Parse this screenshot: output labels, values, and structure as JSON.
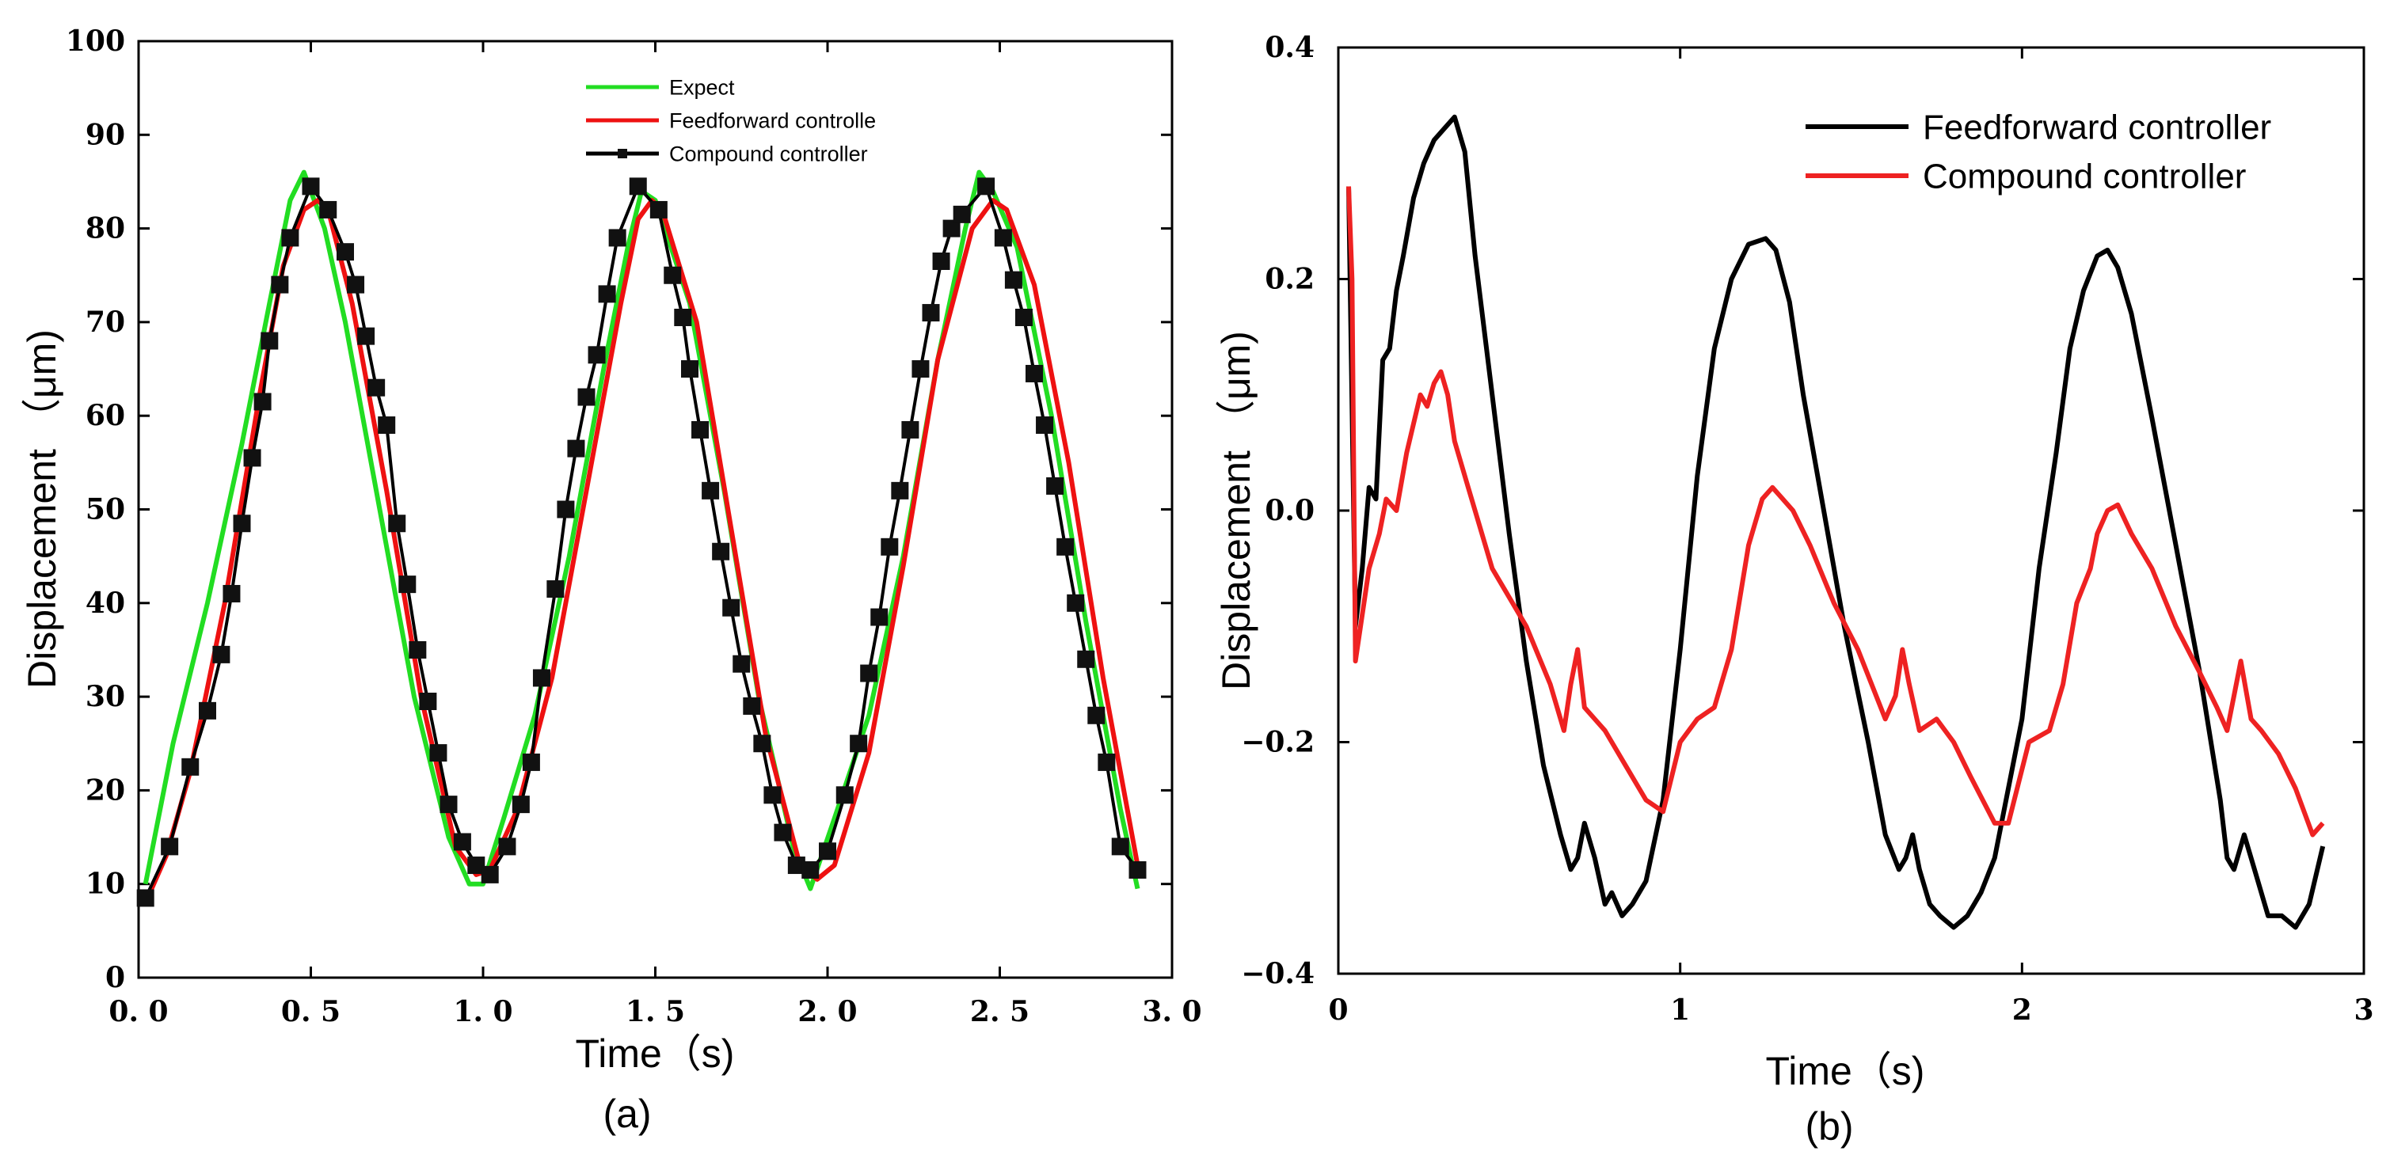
{
  "chart_data": [
    {
      "type": "line",
      "panel_label": "(a)",
      "xlabel": "Time（s)",
      "ylabel": "Displacement （μm)",
      "xlim": [
        0,
        3
      ],
      "ylim": [
        0,
        100
      ],
      "x_ticks": [
        0,
        0.5,
        1,
        1.5,
        2,
        2.5,
        3
      ],
      "x_tick_labels": [
        "0. 0",
        "0. 5",
        "1. 0",
        "1. 5",
        "2. 0",
        "2. 5",
        "3. 0"
      ],
      "y_ticks": [
        0,
        10,
        20,
        30,
        40,
        50,
        60,
        70,
        80,
        90,
        100
      ],
      "y_tick_labels": [
        "0",
        "10",
        "20",
        "30",
        "40",
        "50",
        "60",
        "70",
        "80",
        "90",
        "100"
      ],
      "legend_position": "top-center",
      "series": [
        {
          "name": "Expect",
          "color": "#22dd22",
          "x": [
            0.02,
            0.1,
            0.2,
            0.3,
            0.38,
            0.44,
            0.48,
            0.5,
            0.54,
            0.6,
            0.7,
            0.8,
            0.9,
            0.96,
            1.0,
            1.06,
            1.15,
            1.25,
            1.35,
            1.42,
            1.46,
            1.5,
            1.6,
            1.7,
            1.8,
            1.9,
            1.95,
            2.02,
            2.12,
            2.22,
            2.32,
            2.4,
            2.44,
            2.48,
            2.55,
            2.65,
            2.75,
            2.85,
            2.9
          ],
          "values": [
            10,
            25,
            40,
            57,
            72,
            83,
            86,
            84,
            80,
            70,
            50,
            30,
            15,
            10,
            10,
            17,
            28,
            45,
            65,
            78,
            84,
            83,
            72,
            52,
            30,
            14,
            9.5,
            17,
            28,
            45,
            66,
            80,
            86,
            84,
            78,
            60,
            38,
            18,
            9.5
          ]
        },
        {
          "name": "Feedforward controlle",
          "color": "#ee1111",
          "x": [
            0.02,
            0.08,
            0.15,
            0.25,
            0.35,
            0.42,
            0.48,
            0.52,
            0.55,
            0.62,
            0.72,
            0.82,
            0.92,
            0.98,
            1.02,
            1.1,
            1.2,
            1.3,
            1.4,
            1.45,
            1.49,
            1.52,
            1.62,
            1.72,
            1.82,
            1.92,
            1.97,
            2.02,
            2.12,
            2.22,
            2.32,
            2.42,
            2.48,
            2.52,
            2.6,
            2.7,
            2.8,
            2.9
          ],
          "values": [
            8,
            13,
            22,
            40,
            62,
            76,
            82,
            83,
            82,
            72,
            52,
            30,
            14,
            11,
            11.5,
            18,
            32,
            52,
            72,
            81,
            83,
            82,
            70,
            48,
            26,
            12,
            10.5,
            12,
            24,
            44,
            66,
            80,
            83,
            82,
            74,
            55,
            32,
            12
          ]
        },
        {
          "name": "Compound controller",
          "color": "#000000",
          "marker": "square",
          "x": [
            0.02,
            0.09,
            0.15,
            0.2,
            0.24,
            0.27,
            0.3,
            0.33,
            0.36,
            0.38,
            0.41,
            0.44,
            0.5,
            0.55,
            0.6,
            0.63,
            0.66,
            0.69,
            0.72,
            0.75,
            0.78,
            0.81,
            0.84,
            0.87,
            0.9,
            0.94,
            0.98,
            1.02,
            1.07,
            1.11,
            1.14,
            1.17,
            1.21,
            1.24,
            1.27,
            1.3,
            1.33,
            1.36,
            1.39,
            1.45,
            1.51,
            1.55,
            1.58,
            1.6,
            1.63,
            1.66,
            1.69,
            1.72,
            1.75,
            1.78,
            1.81,
            1.84,
            1.87,
            1.91,
            1.95,
            2.0,
            2.05,
            2.09,
            2.12,
            2.15,
            2.18,
            2.21,
            2.24,
            2.27,
            2.3,
            2.33,
            2.36,
            2.39,
            2.46,
            2.51,
            2.54,
            2.57,
            2.6,
            2.63,
            2.66,
            2.69,
            2.72,
            2.75,
            2.78,
            2.81,
            2.85,
            2.9
          ],
          "values": [
            8.5,
            14,
            22.5,
            28.5,
            34.5,
            41,
            48.5,
            55.5,
            61.5,
            68,
            74,
            79,
            84.5,
            82,
            77.5,
            74,
            68.5,
            63,
            59,
            48.5,
            42,
            35,
            29.5,
            24,
            18.5,
            14.5,
            12,
            11,
            14,
            18.5,
            23,
            32,
            41.5,
            50,
            56.5,
            62,
            66.5,
            73,
            79,
            84.5,
            82,
            75,
            70.5,
            65,
            58.5,
            52,
            45.5,
            39.5,
            33.5,
            29,
            25,
            19.5,
            15.5,
            12,
            11.5,
            13.5,
            19.5,
            25,
            32.5,
            38.5,
            46,
            52,
            58.5,
            65,
            71,
            76.5,
            80,
            81.5,
            84.5,
            79,
            74.5,
            70.5,
            64.5,
            59,
            52.5,
            46,
            40,
            34,
            28,
            23,
            14,
            11.5
          ]
        }
      ]
    },
    {
      "type": "line",
      "panel_label": "(b)",
      "xlabel": "Time（s)",
      "ylabel": "Displacement （μm)",
      "xlim": [
        0,
        3
      ],
      "ylim": [
        -0.4,
        0.4
      ],
      "x_ticks": [
        0,
        1,
        2,
        3
      ],
      "x_tick_labels": [
        "0",
        "1",
        "2",
        "3"
      ],
      "y_ticks": [
        -0.4,
        -0.2,
        0.0,
        0.2,
        0.4
      ],
      "y_tick_labels": [
        "−0.4",
        "−0.2",
        "0.0",
        "0.2",
        "0.4"
      ],
      "legend_position": "top-right",
      "series": [
        {
          "name": "Feedforward controller",
          "color": "#000000",
          "x": [
            0.03,
            0.05,
            0.07,
            0.09,
            0.11,
            0.13,
            0.15,
            0.17,
            0.19,
            0.22,
            0.25,
            0.28,
            0.31,
            0.34,
            0.37,
            0.4,
            0.45,
            0.5,
            0.55,
            0.6,
            0.65,
            0.68,
            0.7,
            0.72,
            0.75,
            0.78,
            0.8,
            0.83,
            0.86,
            0.9,
            0.95,
            1.0,
            1.05,
            1.1,
            1.15,
            1.2,
            1.25,
            1.28,
            1.32,
            1.36,
            1.42,
            1.48,
            1.55,
            1.6,
            1.64,
            1.66,
            1.68,
            1.7,
            1.73,
            1.76,
            1.8,
            1.84,
            1.88,
            1.92,
            2.0,
            2.05,
            2.1,
            2.14,
            2.18,
            2.22,
            2.25,
            2.28,
            2.32,
            2.38,
            2.45,
            2.52,
            2.58,
            2.6,
            2.62,
            2.65,
            2.68,
            2.72,
            2.76,
            2.8,
            2.84,
            2.88
          ],
          "values": [
            0.28,
            -0.1,
            -0.05,
            0.02,
            0.01,
            0.13,
            0.14,
            0.19,
            0.22,
            0.27,
            0.3,
            0.32,
            0.33,
            0.34,
            0.31,
            0.22,
            0.1,
            -0.02,
            -0.13,
            -0.22,
            -0.28,
            -0.31,
            -0.3,
            -0.27,
            -0.3,
            -0.34,
            -0.33,
            -0.35,
            -0.34,
            -0.32,
            -0.25,
            -0.12,
            0.03,
            0.14,
            0.2,
            0.23,
            0.235,
            0.225,
            0.18,
            0.1,
            0.0,
            -0.1,
            -0.2,
            -0.28,
            -0.31,
            -0.3,
            -0.28,
            -0.31,
            -0.34,
            -0.35,
            -0.36,
            -0.35,
            -0.33,
            -0.3,
            -0.18,
            -0.05,
            0.05,
            0.14,
            0.19,
            0.22,
            0.225,
            0.21,
            0.17,
            0.08,
            -0.03,
            -0.14,
            -0.25,
            -0.3,
            -0.31,
            -0.28,
            -0.31,
            -0.35,
            -0.35,
            -0.36,
            -0.34,
            -0.29
          ]
        },
        {
          "name": "Compound controller",
          "color": "#ee2222",
          "x": [
            0.03,
            0.04,
            0.05,
            0.07,
            0.09,
            0.12,
            0.14,
            0.17,
            0.2,
            0.24,
            0.26,
            0.28,
            0.3,
            0.32,
            0.34,
            0.38,
            0.45,
            0.55,
            0.62,
            0.66,
            0.68,
            0.7,
            0.72,
            0.75,
            0.78,
            0.8,
            0.84,
            0.9,
            0.95,
            1.0,
            1.05,
            1.1,
            1.15,
            1.2,
            1.24,
            1.27,
            1.3,
            1.33,
            1.38,
            1.45,
            1.52,
            1.6,
            1.63,
            1.65,
            1.67,
            1.7,
            1.75,
            1.8,
            1.85,
            1.92,
            1.96,
            2.02,
            2.08,
            2.12,
            2.16,
            2.2,
            2.22,
            2.25,
            2.28,
            2.32,
            2.38,
            2.45,
            2.52,
            2.57,
            2.6,
            2.62,
            2.64,
            2.67,
            2.7,
            2.75,
            2.8,
            2.85,
            2.88
          ],
          "values": [
            0.28,
            0.2,
            -0.13,
            -0.09,
            -0.05,
            -0.02,
            0.01,
            0.0,
            0.05,
            0.1,
            0.09,
            0.11,
            0.12,
            0.1,
            0.06,
            0.02,
            -0.05,
            -0.1,
            -0.15,
            -0.19,
            -0.15,
            -0.12,
            -0.17,
            -0.18,
            -0.19,
            -0.2,
            -0.22,
            -0.25,
            -0.26,
            -0.2,
            -0.18,
            -0.17,
            -0.12,
            -0.03,
            0.01,
            0.02,
            0.01,
            0.0,
            -0.03,
            -0.08,
            -0.12,
            -0.18,
            -0.16,
            -0.12,
            -0.15,
            -0.19,
            -0.18,
            -0.2,
            -0.23,
            -0.27,
            -0.27,
            -0.2,
            -0.19,
            -0.15,
            -0.08,
            -0.05,
            -0.02,
            0.0,
            0.005,
            -0.02,
            -0.05,
            -0.1,
            -0.14,
            -0.17,
            -0.19,
            -0.16,
            -0.13,
            -0.18,
            -0.19,
            -0.21,
            -0.24,
            -0.28,
            -0.27
          ]
        }
      ]
    }
  ]
}
